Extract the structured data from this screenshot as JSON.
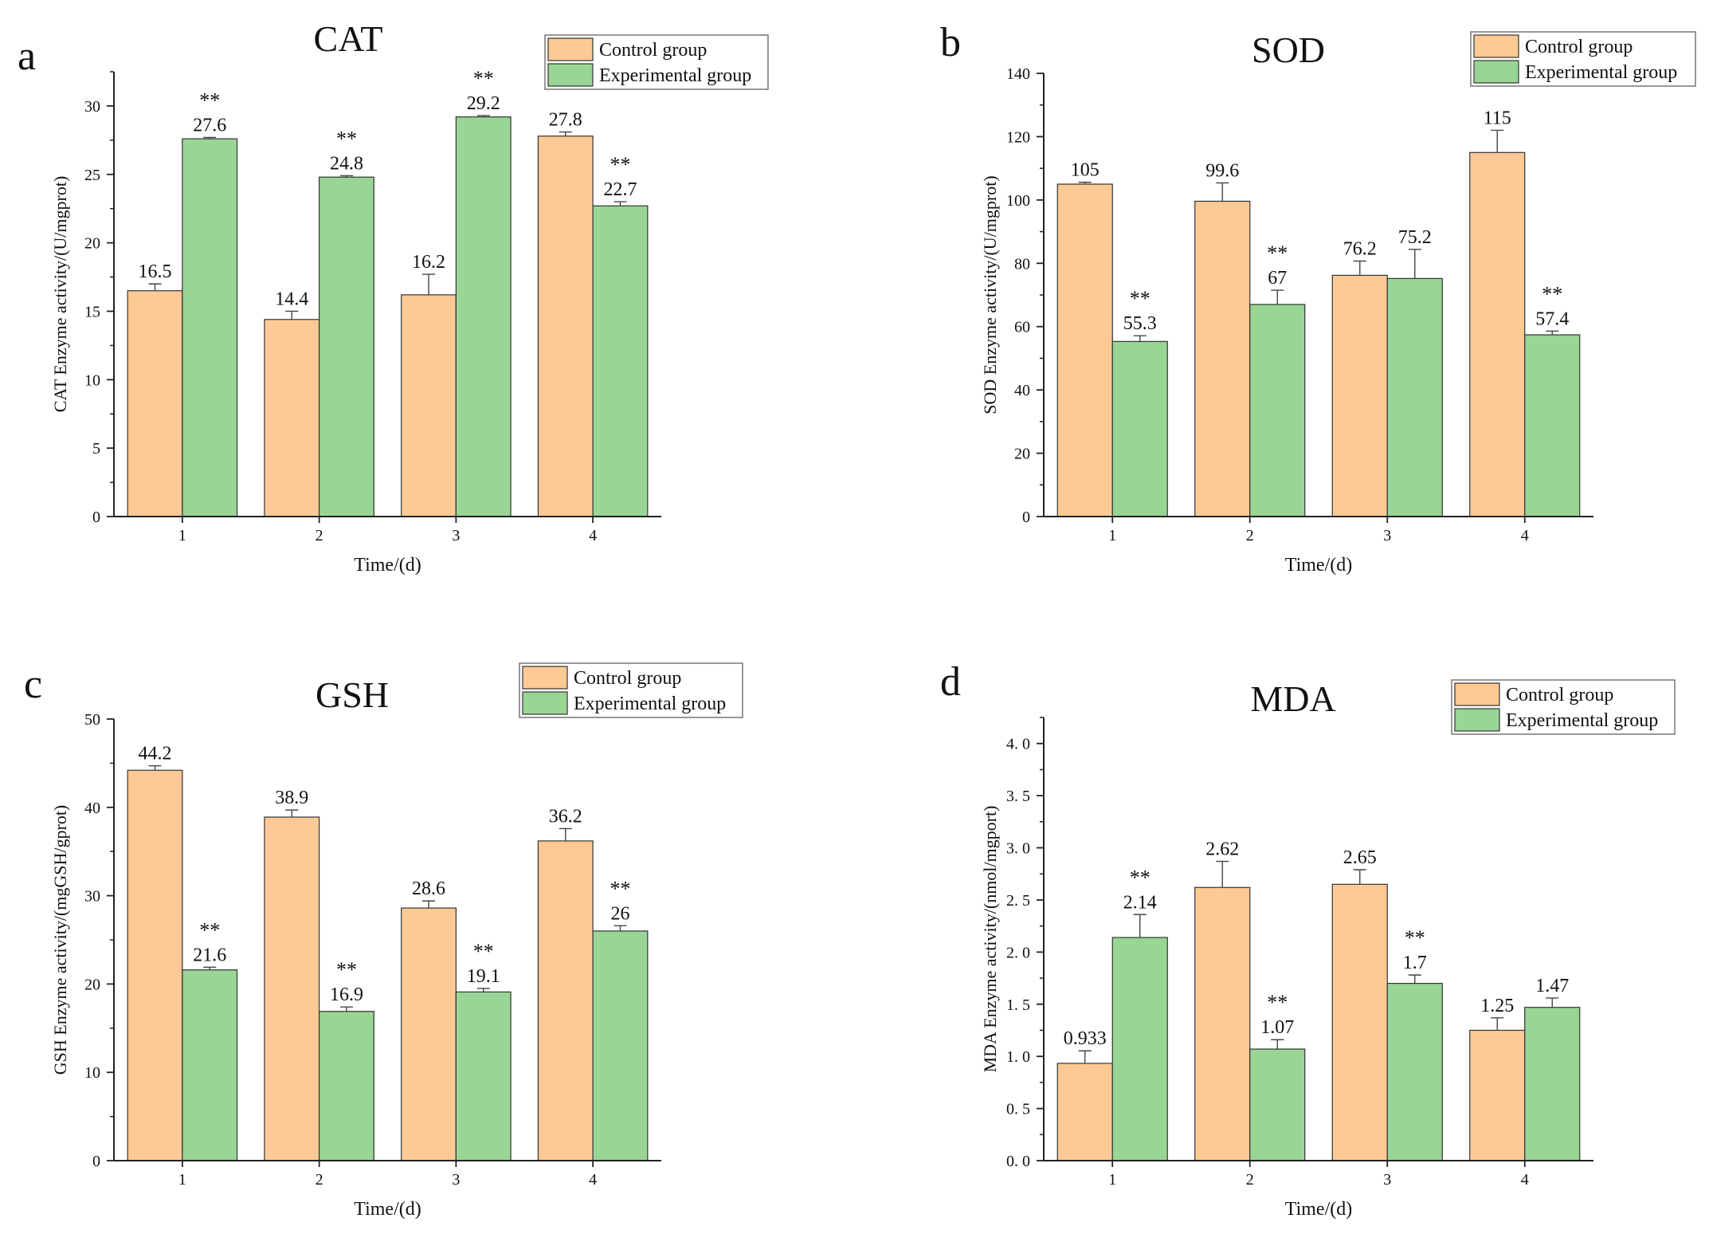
{
  "colors": {
    "control": "#FDC994",
    "experimental": "#99D594",
    "axis": "#222222",
    "text": "#111111"
  },
  "chart_data": [
    {
      "type": "bar",
      "panel": "a",
      "title": "CAT",
      "xlabel": "Time/(d)",
      "ylabel": "CAT Enzyme activity/(U/mgprot)",
      "categories": [
        "1",
        "2",
        "3",
        "4"
      ],
      "ylim": [
        0,
        32.5
      ],
      "yticks": [
        0,
        5,
        10,
        15,
        20,
        25,
        30
      ],
      "ytick_labels": [
        "0",
        "5",
        "10",
        "15",
        "20",
        "25",
        "30"
      ],
      "legend_position": "top-right",
      "series": [
        {
          "name": "Control group",
          "values": [
            16.5,
            14.4,
            16.2,
            27.8
          ],
          "errors": [
            0.5,
            0.6,
            1.5,
            0.3
          ],
          "labels": [
            "16.5",
            "14.4",
            "16.2",
            "27.8"
          ],
          "sig": [
            "",
            "",
            "",
            ""
          ]
        },
        {
          "name": "Experimental group",
          "values": [
            27.6,
            24.8,
            29.2,
            22.7
          ],
          "errors": [
            0.1,
            0.1,
            0.1,
            0.3
          ],
          "labels": [
            "27.6",
            "24.8",
            "29.2",
            "22.7"
          ],
          "sig": [
            "**",
            "**",
            "**",
            "**"
          ]
        }
      ]
    },
    {
      "type": "bar",
      "panel": "b",
      "title": "SOD",
      "xlabel": "Time/(d)",
      "ylabel": "SOD Enzyme activity/(U/mgprot)",
      "categories": [
        "1",
        "2",
        "3",
        "4"
      ],
      "ylim": [
        0,
        140
      ],
      "yticks": [
        0,
        20,
        40,
        60,
        80,
        100,
        120,
        140
      ],
      "ytick_labels": [
        "0",
        "20",
        "40",
        "60",
        "80",
        "100",
        "120",
        "140"
      ],
      "legend_position": "top-right",
      "series": [
        {
          "name": "Control group",
          "values": [
            105,
            99.6,
            76.2,
            115
          ],
          "errors": [
            0.6,
            5.8,
            4.5,
            7
          ],
          "labels": [
            "105",
            "99.6",
            "76.2",
            "115"
          ],
          "sig": [
            "",
            "",
            "",
            ""
          ]
        },
        {
          "name": "Experimental group",
          "values": [
            55.3,
            67,
            75.2,
            57.4
          ],
          "errors": [
            1.8,
            4.5,
            9.2,
            1.2
          ],
          "labels": [
            "55.3",
            "67",
            "75.2",
            "57.4"
          ],
          "sig": [
            "**",
            "**",
            "",
            "**"
          ]
        }
      ]
    },
    {
      "type": "bar",
      "panel": "c",
      "title": "GSH",
      "xlabel": "Time/(d)",
      "ylabel": "GSH Enzyme activity/(mgGSH/gprot)",
      "categories": [
        "1",
        "2",
        "3",
        "4"
      ],
      "ylim": [
        0,
        50
      ],
      "yticks": [
        0,
        10,
        20,
        30,
        40,
        50
      ],
      "ytick_labels": [
        "0",
        "10",
        "20",
        "30",
        "40",
        "50"
      ],
      "legend_position": "top-right",
      "series": [
        {
          "name": "Control group",
          "values": [
            44.2,
            38.9,
            28.6,
            36.2
          ],
          "errors": [
            0.5,
            0.8,
            0.8,
            1.4
          ],
          "labels": [
            "44.2",
            "38.9",
            "28.6",
            "36.2"
          ],
          "sig": [
            "",
            "",
            "",
            ""
          ]
        },
        {
          "name": "Experimental group",
          "values": [
            21.6,
            16.9,
            19.1,
            26
          ],
          "errors": [
            0.3,
            0.5,
            0.4,
            0.6
          ],
          "labels": [
            "21.6",
            "16.9",
            "19.1",
            "26"
          ],
          "sig": [
            "**",
            "**",
            "**",
            "**"
          ]
        }
      ]
    },
    {
      "type": "bar",
      "panel": "d",
      "title": "MDA",
      "xlabel": "Time/(d)",
      "ylabel": "MDA Enzyme activity/(nmol/mgport)",
      "categories": [
        "1",
        "2",
        "3",
        "4"
      ],
      "ylim": [
        0,
        4.25
      ],
      "yticks": [
        0,
        0.5,
        1,
        1.5,
        2,
        2.5,
        3,
        3.5,
        4
      ],
      "ytick_labels": [
        "0. 0",
        "0. 5",
        "1. 0",
        "1. 5",
        "2. 0",
        "2. 5",
        "3. 0",
        "3. 5",
        "4. 0"
      ],
      "legend_position": "top-right",
      "series": [
        {
          "name": "Control group",
          "values": [
            0.933,
            2.62,
            2.65,
            1.25
          ],
          "errors": [
            0.12,
            0.25,
            0.14,
            0.12
          ],
          "labels": [
            "0.933",
            "2.62",
            "2.65",
            "1.25"
          ],
          "sig": [
            "",
            "",
            "",
            ""
          ]
        },
        {
          "name": "Experimental group",
          "values": [
            2.14,
            1.07,
            1.7,
            1.47
          ],
          "errors": [
            0.22,
            0.09,
            0.08,
            0.09
          ],
          "labels": [
            "2.14",
            "1.07",
            "1.7",
            "1.47"
          ],
          "sig": [
            "**",
            "**",
            "**",
            ""
          ]
        }
      ]
    }
  ]
}
